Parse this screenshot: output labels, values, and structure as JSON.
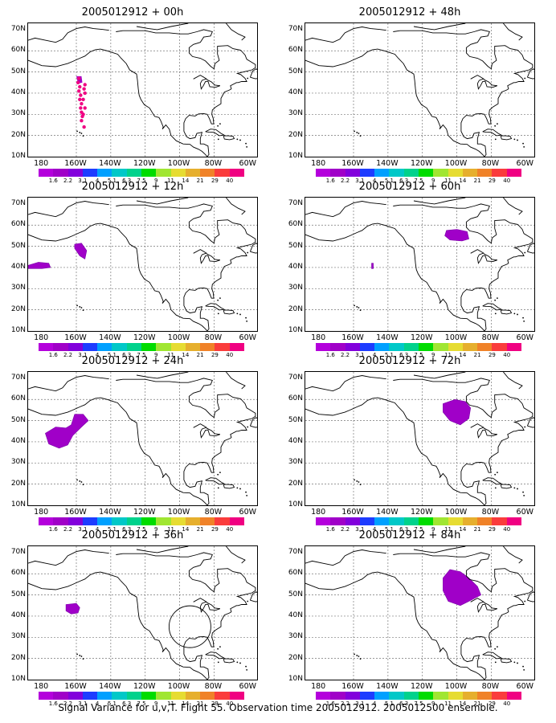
{
  "figure": {
    "footer": "Signal Variance for u,v,T. Flight 55. Observation time 2005012912. 2005012500 ensemble."
  },
  "axes": {
    "y_labels": [
      "70N",
      "60N",
      "50N",
      "40N",
      "30N",
      "20N",
      "10N"
    ],
    "x_labels": [
      "180",
      "160W",
      "140W",
      "120W",
      "100W",
      "80W",
      "60W"
    ]
  },
  "colorbar": {
    "labels": [
      "1.6",
      "2.2",
      "3.1",
      "4",
      "5.1",
      "6.3",
      "7.5",
      "9",
      "11",
      "14",
      "21",
      "29",
      "40"
    ],
    "colors": [
      "#a000c8",
      "#8200dc",
      "#1e3cff",
      "#00a0ff",
      "#00c8c8",
      "#00d28c",
      "#00dc00",
      "#a0e632",
      "#e6dc32",
      "#e6af2d",
      "#f08228",
      "#fa3c3c",
      "#f00082"
    ]
  },
  "panels": [
    {
      "title": "2005012912 + 00h",
      "col": 0,
      "row": 0
    },
    {
      "title": "2005012912 + 12h",
      "col": 0,
      "row": 1
    },
    {
      "title": "2005012912 + 24h",
      "col": 0,
      "row": 2
    },
    {
      "title": "2005012912 + 36h",
      "col": 0,
      "row": 3
    },
    {
      "title": "2005012912 + 48h",
      "col": 1,
      "row": 0
    },
    {
      "title": "2005012912 + 60h",
      "col": 1,
      "row": 1
    },
    {
      "title": "2005012912 + 72h",
      "col": 1,
      "row": 2
    },
    {
      "title": "2005012912 + 84h",
      "col": 1,
      "row": 3
    }
  ]
}
